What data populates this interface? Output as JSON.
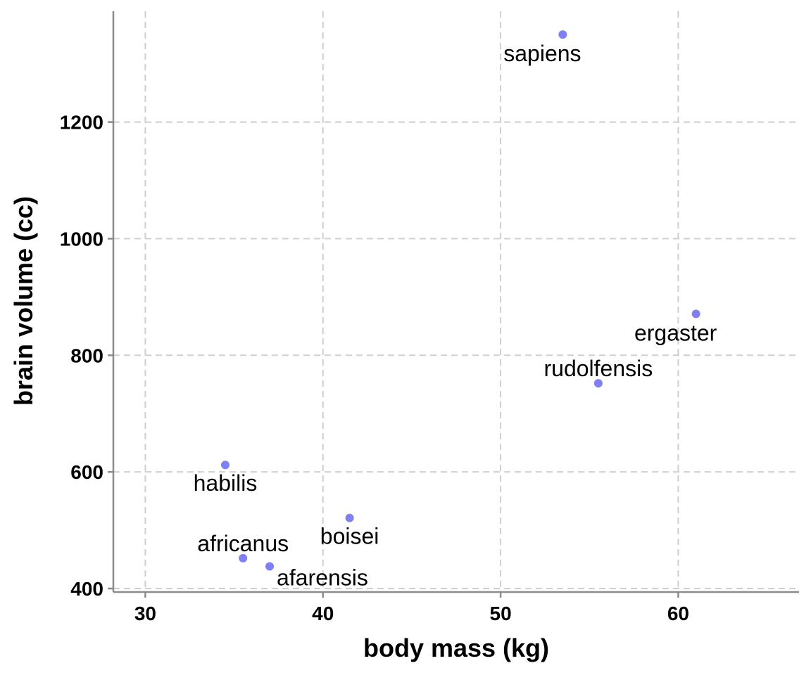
{
  "chart_data": {
    "type": "scatter",
    "title": "",
    "xlabel": "body mass (kg)",
    "ylabel": "brain volume (cc)",
    "xlim": [
      28.2,
      66.8
    ],
    "ylim": [
      394,
      1390
    ],
    "xticks": [
      30,
      40,
      50,
      60
    ],
    "yticks": [
      400,
      600,
      800,
      1000,
      1200
    ],
    "grid": true,
    "point_color": "#8080f0",
    "points": [
      {
        "label": "afarensis",
        "x": 37.0,
        "y": 438,
        "label_pos": "below-right"
      },
      {
        "label": "africanus",
        "x": 35.5,
        "y": 452,
        "label_pos": "above"
      },
      {
        "label": "habilis",
        "x": 34.5,
        "y": 612,
        "label_pos": "below"
      },
      {
        "label": "boisei",
        "x": 41.5,
        "y": 521,
        "label_pos": "below"
      },
      {
        "label": "rudolfensis",
        "x": 55.5,
        "y": 752,
        "label_pos": "above"
      },
      {
        "label": "ergaster",
        "x": 61.0,
        "y": 871,
        "label_pos": "below-left"
      },
      {
        "label": "sapiens",
        "x": 53.5,
        "y": 1350,
        "label_pos": "below-left"
      }
    ]
  }
}
